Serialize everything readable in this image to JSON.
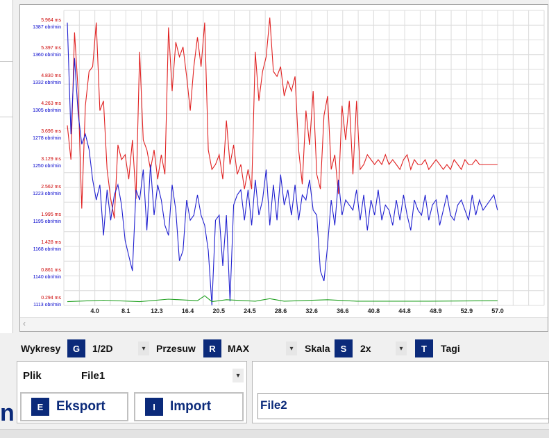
{
  "chart_data": {
    "type": "line",
    "x_ticks": [
      "4.0",
      "8.1",
      "12.3",
      "16.4",
      "20.5",
      "24.5",
      "28.6",
      "32.6",
      "36.6",
      "40.8",
      "44.8",
      "48.9",
      "52.9",
      "57.0"
    ],
    "x_range": [
      0,
      60
    ],
    "y_labels_time": [
      "5.964 ms",
      "5.397 ms",
      "4.830 ms",
      "4.263 ms",
      "3.696 ms",
      "3.129 ms",
      "2.562 ms",
      "1.995 ms",
      "1.428 ms",
      "0.861 ms",
      "0.294 ms"
    ],
    "y_labels_rpm": [
      "1387 obr/min",
      "1360 obr/min",
      "1332 obr/min",
      "1305 obr/min",
      "1278 obr/min",
      "1250 obr/min",
      "1223 obr/min",
      "1195 obr/min",
      "1168 obr/min",
      "1140 obr/min",
      "1113 obr/min"
    ],
    "grid": true,
    "series": [
      {
        "color": "#e02020",
        "unit": "ms",
        "x": [
          0,
          0.5,
          1,
          1.5,
          2,
          2.5,
          3,
          3.5,
          4,
          4.5,
          5,
          5.5,
          6,
          6.5,
          7,
          7.5,
          8,
          8.5,
          9,
          9.5,
          10,
          10.5,
          11,
          11.5,
          12,
          12.5,
          13,
          13.5,
          14,
          14.5,
          15,
          15.5,
          16,
          16.5,
          17,
          17.5,
          18,
          18.5,
          19,
          19.5,
          20,
          20.5,
          21,
          21.5,
          22,
          22.5,
          23,
          23.5,
          24,
          24.5,
          25,
          25.5,
          26,
          26.5,
          27,
          27.5,
          28,
          28.5,
          29,
          29.5,
          30,
          30.5,
          31,
          31.5,
          32,
          32.5,
          33,
          33.5,
          34,
          34.5,
          35,
          35.5,
          36,
          36.5,
          37,
          37.5,
          38,
          38.5,
          39,
          39.5,
          40,
          40.5,
          41,
          41.5,
          42,
          42.5,
          43,
          43.5,
          44,
          44.5,
          45,
          45.5,
          46,
          46.5,
          47,
          47.5,
          48,
          48.5,
          49,
          49.5,
          50,
          50.5,
          51,
          51.5,
          52,
          52.5,
          53,
          53.5,
          54,
          54.5,
          55,
          55.5,
          56,
          56.5,
          57,
          57.5,
          58,
          58.5,
          59,
          59.5
        ],
        "y": [
          3.9,
          3.2,
          5.8,
          4.6,
          2.2,
          4.3,
          5.0,
          5.1,
          6.0,
          4.2,
          4.4,
          3.0,
          2.4,
          2.0,
          3.5,
          3.2,
          3.3,
          2.8,
          3.6,
          2.4,
          5.4,
          3.6,
          3.4,
          3.0,
          3.4,
          2.8,
          3.3,
          2.9,
          5.9,
          4.6,
          5.6,
          5.3,
          5.5,
          4.9,
          4.2,
          5.1,
          5.7,
          5.1,
          6.0,
          3.4,
          3.0,
          3.1,
          3.3,
          2.8,
          4.0,
          3.1,
          3.5,
          2.9,
          3.1,
          2.6,
          3.0,
          2.6,
          5.4,
          4.4,
          5.0,
          5.3,
          6.1,
          5.0,
          4.9,
          5.1,
          4.5,
          4.8,
          4.6,
          4.9,
          3.4,
          2.7,
          4.2,
          3.5,
          4.6,
          2.9,
          2.6,
          4.1,
          4.5,
          3.0,
          3.3,
          2.5,
          4.3,
          3.6,
          4.4,
          2.9,
          4.4,
          3.0,
          3.1,
          3.3,
          3.2,
          3.1,
          3.2,
          3.1,
          3.3,
          3.1,
          3.2,
          3.1,
          3.0,
          3.2,
          3.3,
          3.0,
          3.2,
          3.1,
          3.1,
          3.2,
          3.0,
          3.1,
          3.2,
          3.1,
          3.0,
          3.1,
          3.0,
          3.2,
          3.1,
          3.0,
          3.2,
          3.1,
          3.1,
          3.2,
          3.1,
          3.1,
          3.1,
          3.1,
          3.1,
          3.1
        ]
      },
      {
        "color": "#2020d0",
        "unit": "obr/min",
        "x": [
          0,
          0.5,
          1,
          1.5,
          2,
          2.5,
          3,
          3.5,
          4,
          4.5,
          5,
          5.5,
          6,
          6.5,
          7,
          7.5,
          8,
          8.5,
          9,
          9.5,
          10,
          10.5,
          11,
          11.5,
          12,
          12.5,
          13,
          13.5,
          14,
          14.5,
          15,
          15.5,
          16,
          16.5,
          17,
          17.5,
          18,
          18.5,
          19,
          19.5,
          20,
          20.5,
          21,
          21.5,
          22,
          22.5,
          23,
          23.5,
          24,
          24.5,
          25,
          25.5,
          26,
          26.5,
          27,
          27.5,
          28,
          28.5,
          29,
          29.5,
          30,
          30.5,
          31,
          31.5,
          32,
          32.5,
          33,
          33.5,
          34,
          34.5,
          35,
          35.5,
          36,
          36.5,
          37,
          37.5,
          38,
          38.5,
          39,
          39.5,
          40,
          40.5,
          41,
          41.5,
          42,
          42.5,
          43,
          43.5,
          44,
          44.5,
          45,
          45.5,
          46,
          46.5,
          47,
          47.5,
          48,
          48.5,
          49,
          49.5,
          50,
          50.5,
          51,
          51.5,
          52,
          52.5,
          53,
          53.5,
          54,
          54.5,
          55,
          55.5,
          56,
          56.5,
          57,
          57.5,
          58,
          58.5,
          59,
          59.5
        ],
        "y": [
          1390,
          1280,
          1355,
          1300,
          1270,
          1280,
          1265,
          1235,
          1215,
          1230,
          1180,
          1225,
          1195,
          1220,
          1230,
          1210,
          1175,
          1160,
          1145,
          1225,
          1215,
          1245,
          1185,
          1250,
          1200,
          1230,
          1215,
          1190,
          1180,
          1230,
          1205,
          1155,
          1165,
          1215,
          1195,
          1200,
          1220,
          1200,
          1190,
          1165,
          1110,
          1195,
          1200,
          1150,
          1200,
          1115,
          1210,
          1220,
          1225,
          1195,
          1225,
          1190,
          1235,
          1200,
          1215,
          1245,
          1190,
          1230,
          1195,
          1240,
          1210,
          1225,
          1200,
          1230,
          1195,
          1220,
          1215,
          1235,
          1205,
          1200,
          1145,
          1135,
          1170,
          1215,
          1190,
          1235,
          1200,
          1215,
          1210,
          1205,
          1225,
          1195,
          1220,
          1185,
          1215,
          1200,
          1225,
          1195,
          1210,
          1205,
          1190,
          1215,
          1195,
          1220,
          1200,
          1185,
          1215,
          1205,
          1200,
          1220,
          1195,
          1210,
          1215,
          1190,
          1205,
          1220,
          1200,
          1195,
          1210,
          1215,
          1205,
          1195,
          1220,
          1200,
          1215,
          1205,
          1210,
          1215,
          1220,
          1205
        ]
      },
      {
        "color": "#20a020",
        "unit": "ms",
        "x": [
          0,
          5,
          10,
          14,
          18,
          19,
          20,
          22,
          26,
          28,
          30,
          36,
          40,
          50,
          59.5
        ],
        "y": [
          0.3,
          0.33,
          0.3,
          0.35,
          0.32,
          0.42,
          0.3,
          0.34,
          0.31,
          0.36,
          0.31,
          0.34,
          0.31,
          0.31,
          0.32
        ]
      }
    ]
  },
  "controls": {
    "charts_label": "Wykresy",
    "charts_key": "G",
    "charts_value": "1/2D",
    "shift_label": "Przesuw",
    "shift_key": "R",
    "shift_value": "MAX",
    "scale_label": "Skala",
    "scale_key": "S",
    "scale_value": "2x",
    "tags_key": "T",
    "tags_label": "Tagi"
  },
  "file_panel": {
    "file_label": "Plik",
    "file_value": "File1",
    "export_key": "E",
    "export_label": "Eksport",
    "import_key": "I",
    "import_label": "Import"
  },
  "right_panel": {
    "file2": "File2"
  },
  "logo_fragment": "n",
  "icons": {
    "dropdown": "▾",
    "scroll_left": "‹"
  }
}
